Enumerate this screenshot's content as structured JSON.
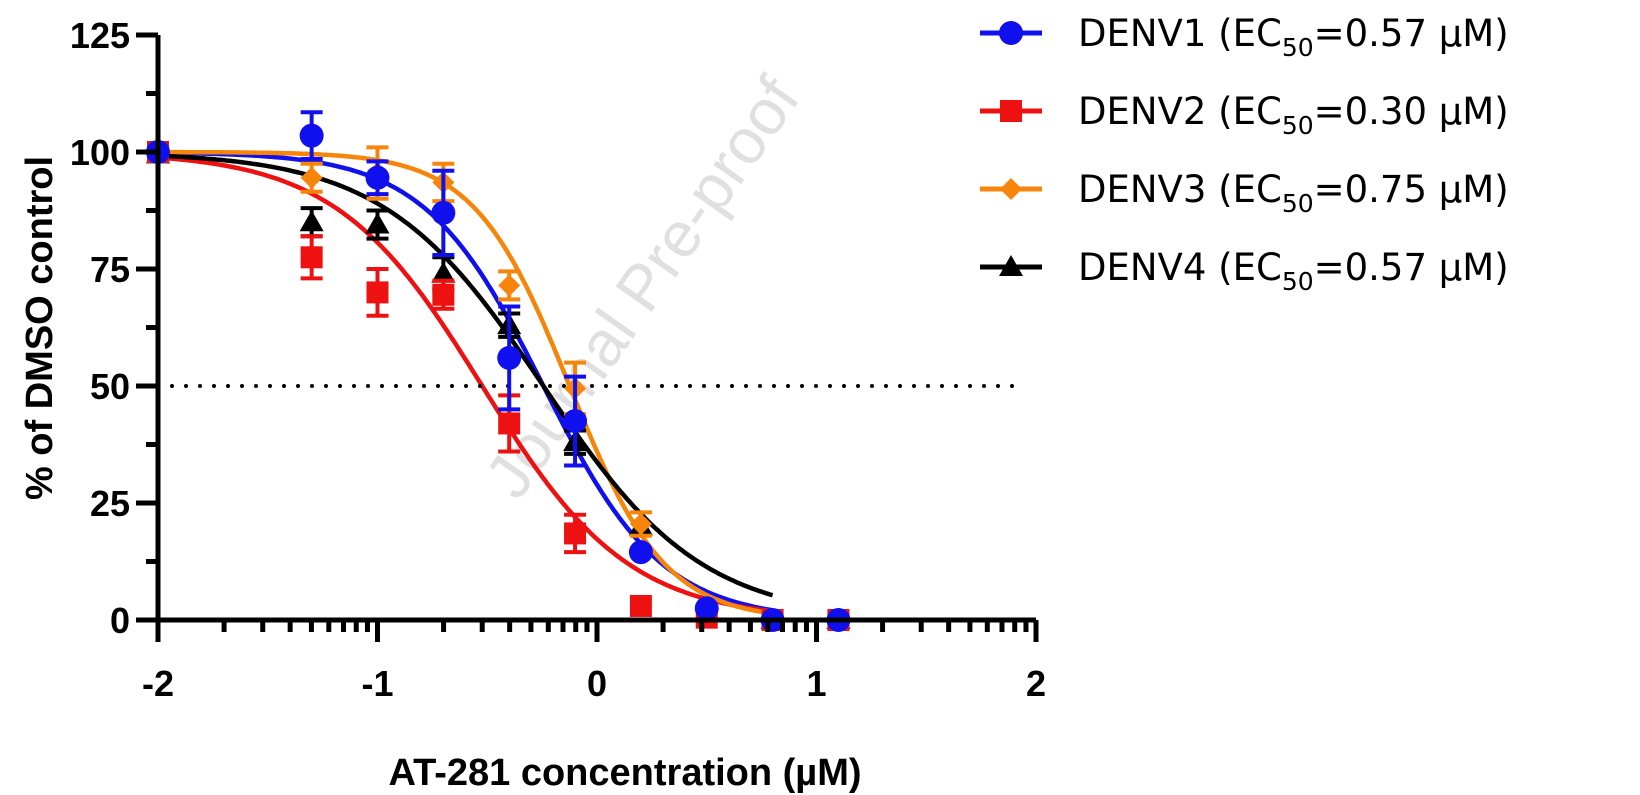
{
  "watermark": "Journal Pre-proof",
  "chart_data": {
    "type": "scatter",
    "xlabel": "AT-281 concentration (µM)",
    "ylabel": "% of DMSO control",
    "xscale": "log10",
    "xlim": [
      -2,
      2
    ],
    "ylim": [
      0,
      125
    ],
    "xticks": [
      -2,
      -1,
      0,
      1,
      2
    ],
    "yticks": [
      0,
      25,
      50,
      75,
      100,
      125
    ],
    "xtick_labels": [
      "-2",
      "-1",
      "0",
      "1",
      "2"
    ],
    "ytick_labels": [
      "0",
      "25",
      "50",
      "75",
      "100",
      "125"
    ],
    "reference_line": {
      "y": 50,
      "style": "dotted"
    },
    "grid": false,
    "legend_position": "top-right outside",
    "series": [
      {
        "name": "DENV1",
        "label_prefix": "DENV1  (EC",
        "label_sub": "50",
        "label_suffix": "=0.57 µM)",
        "color": "#1010ee",
        "marker": "circle",
        "ec50": 0.57,
        "hill": 1.6,
        "x": [
          -2,
          -1.3,
          -1,
          -0.7,
          -0.4,
          -0.1,
          0.2,
          0.5,
          0.8,
          1.1
        ],
        "y": [
          100,
          103.5,
          94.5,
          87,
          56,
          42.5,
          14.5,
          2.5,
          0,
          0
        ],
        "err": [
          0,
          5,
          3.5,
          9,
          11,
          9.5,
          0,
          0,
          0,
          0
        ]
      },
      {
        "name": "DENV2",
        "label_prefix": "DENV2  (EC",
        "label_sub": "50",
        "label_suffix": "=0.30 µM)",
        "color": "#ee1111",
        "marker": "square",
        "ec50": 0.3,
        "hill": 1.3,
        "x": [
          -2,
          -1.3,
          -1,
          -0.7,
          -0.4,
          -0.1,
          0.2,
          0.5,
          0.8,
          1.1
        ],
        "y": [
          100,
          77.5,
          70,
          69.5,
          42,
          18.5,
          3,
          0.5,
          0,
          0
        ],
        "err": [
          0,
          4.5,
          5,
          3,
          6,
          4,
          0,
          0,
          0,
          0
        ]
      },
      {
        "name": "DENV3",
        "label_prefix": "DENV3  (EC",
        "label_sub": "50",
        "label_suffix": "=0.75 µM)",
        "color": "#f7850b",
        "marker": "diamond",
        "ec50": 0.75,
        "hill": 2.0,
        "x": [
          -2,
          -1.3,
          -1,
          -0.7,
          -0.4,
          -0.1,
          0.2,
          0.5,
          0.8,
          1.1
        ],
        "y": [
          100,
          94.5,
          95.5,
          93.5,
          71.5,
          49.5,
          20.5,
          1.5,
          0,
          0
        ],
        "err": [
          0,
          3,
          5.5,
          4,
          3,
          5.5,
          2.5,
          0,
          0,
          0
        ]
      },
      {
        "name": "DENV4",
        "label_prefix": "DENV4  (EC",
        "label_sub": "50",
        "label_suffix": "=0.57 µM)",
        "color": "#000000",
        "marker": "triangle",
        "ec50": 0.57,
        "hill": 1.2,
        "x": [
          -2,
          -1.3,
          -1,
          -0.7,
          -0.4,
          -0.1,
          0.2,
          0.5,
          0.8,
          1.1
        ],
        "y": [
          99.5,
          85,
          84.5,
          74,
          63,
          38,
          20,
          1.5,
          0,
          0
        ],
        "err": [
          0,
          3,
          3,
          3.5,
          2.5,
          2.5,
          0,
          0,
          0,
          0
        ]
      }
    ]
  }
}
